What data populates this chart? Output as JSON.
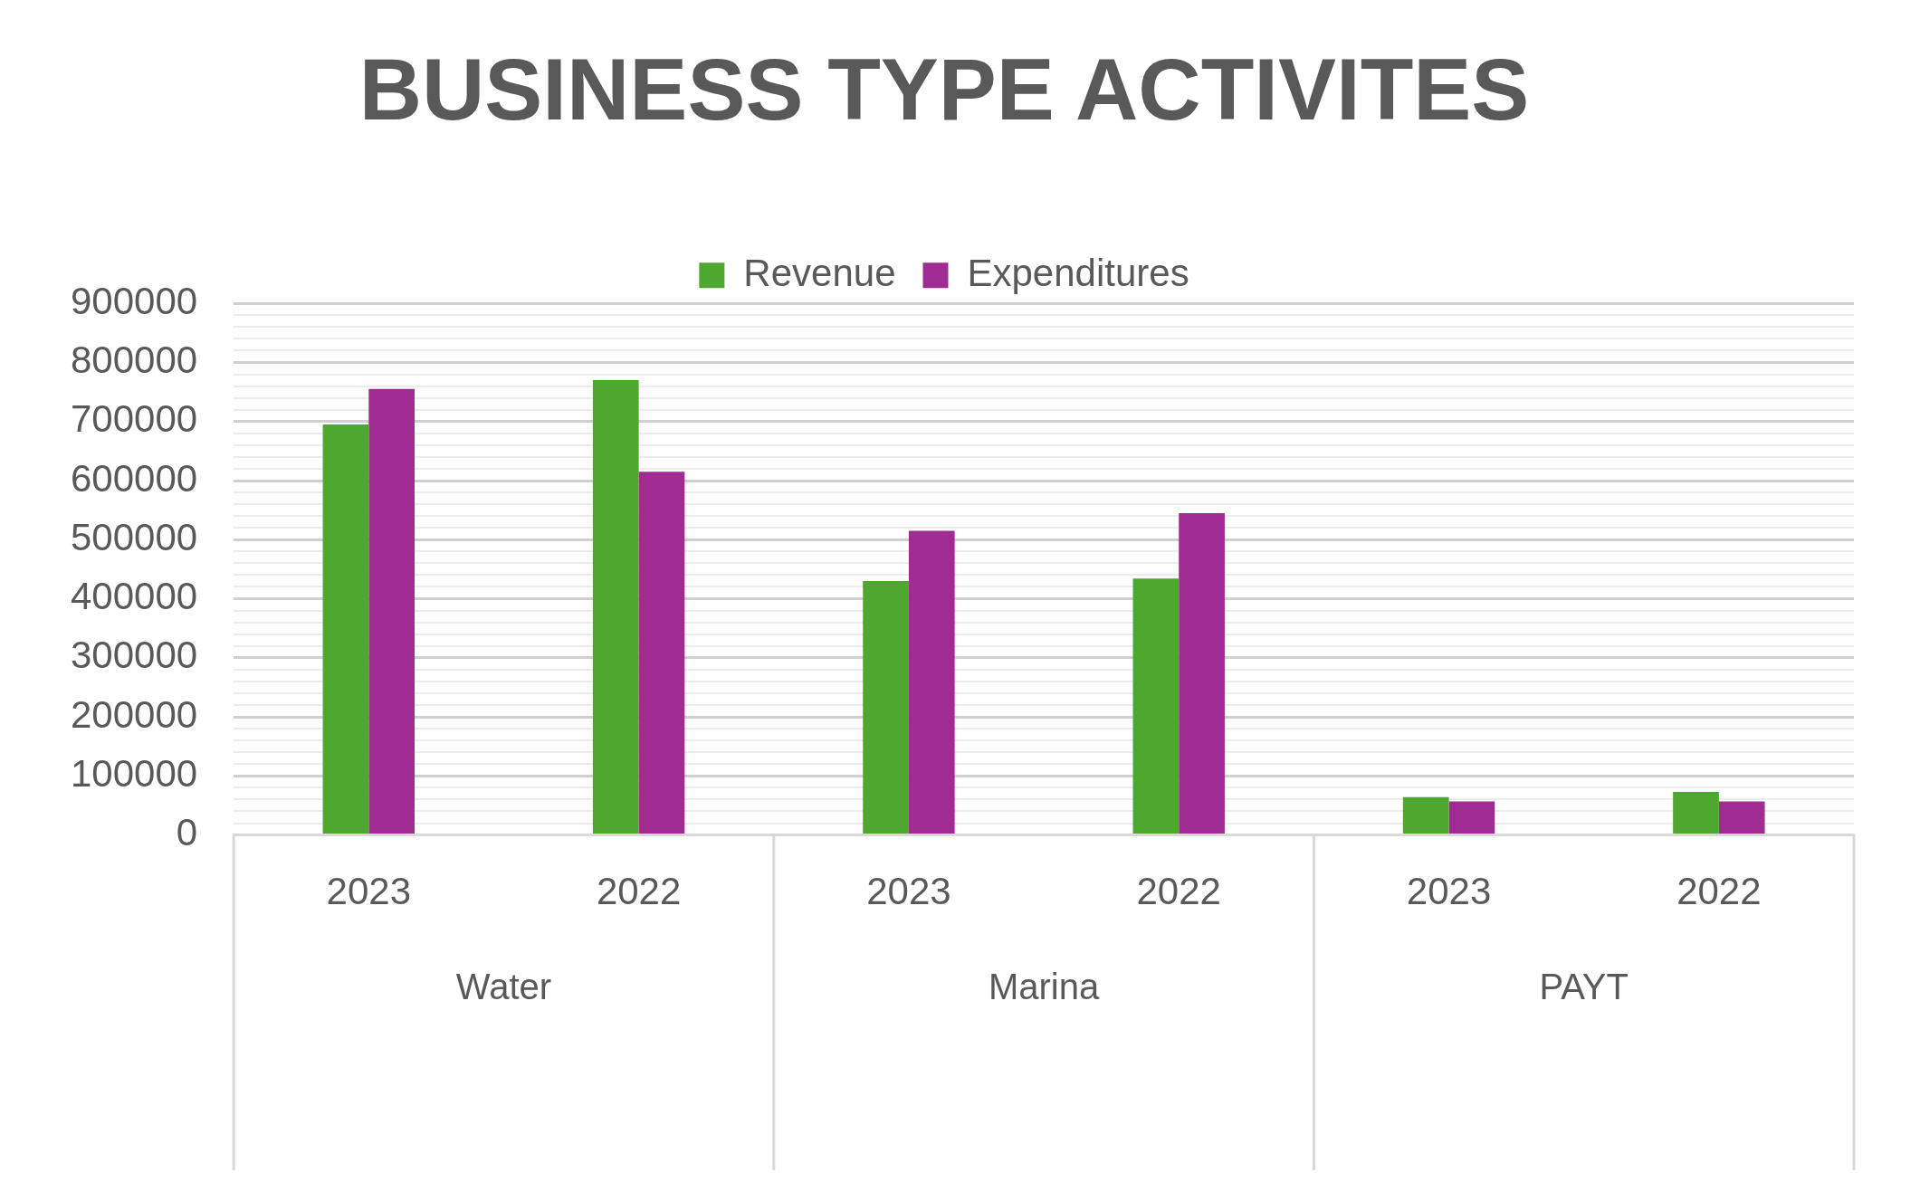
{
  "chart_data": {
    "type": "bar",
    "title": "BUSINESS TYPE ACTIVITES",
    "categories": [
      "2023",
      "2022",
      "2023",
      "2022",
      "2023",
      "2022"
    ],
    "annotations": [
      "Water",
      "Marina",
      "PAYT"
    ],
    "series": [
      {
        "name": "Revenue",
        "color": "#4ea72e",
        "values": [
          695000,
          770000,
          430000,
          434000,
          64000,
          73000
        ]
      },
      {
        "name": "Expenditures",
        "color": "#a02b93",
        "values": [
          755000,
          615000,
          515000,
          545000,
          57000,
          57000
        ]
      }
    ],
    "ylim": [
      0,
      900000
    ],
    "yticks": [
      0,
      {
        "value": 20000,
        "label": null
      },
      {
        "value": 40000,
        "label": null
      },
      {
        "value": 60000,
        "label": null
      },
      {
        "value": 80000,
        "label": null
      },
      100000,
      {
        "value": 120000,
        "label": null
      },
      {
        "value": 140000,
        "label": null
      },
      {
        "value": 160000,
        "label": null
      },
      {
        "value": 180000,
        "label": null
      },
      200000,
      {
        "value": 220000,
        "label": null
      },
      {
        "value": 240000,
        "label": null
      },
      {
        "value": 260000,
        "label": null
      },
      {
        "value": 280000,
        "label": null
      },
      300000,
      {
        "value": 320000,
        "label": null
      },
      {
        "value": 340000,
        "label": null
      },
      {
        "value": 360000,
        "label": null
      },
      {
        "value": 380000,
        "label": null
      },
      400000,
      {
        "value": 420000,
        "label": null
      },
      {
        "value": 440000,
        "label": null
      },
      {
        "value": 460000,
        "label": null
      },
      {
        "value": 480000,
        "label": null
      },
      500000,
      {
        "value": 520000,
        "label": null
      },
      {
        "value": 540000,
        "label": null
      },
      {
        "value": 560000,
        "label": null
      },
      {
        "value": 580000,
        "label": null
      },
      600000,
      {
        "value": 620000,
        "label": null
      },
      {
        "value": 640000,
        "label": null
      },
      {
        "value": 660000,
        "label": null
      },
      {
        "value": 680000,
        "label": null
      },
      700000,
      {
        "value": 720000,
        "label": null
      },
      {
        "value": 740000,
        "label": null
      },
      {
        "value": 760000,
        "label": null
      },
      {
        "value": 780000,
        "label": null
      },
      800000,
      {
        "value": 820000,
        "label": null
      },
      {
        "value": 840000,
        "label": null
      },
      {
        "value": 860000,
        "label": null
      },
      {
        "value": 880000,
        "label": null
      },
      900000
    ],
    "grid": "y",
    "legend": "top"
  }
}
